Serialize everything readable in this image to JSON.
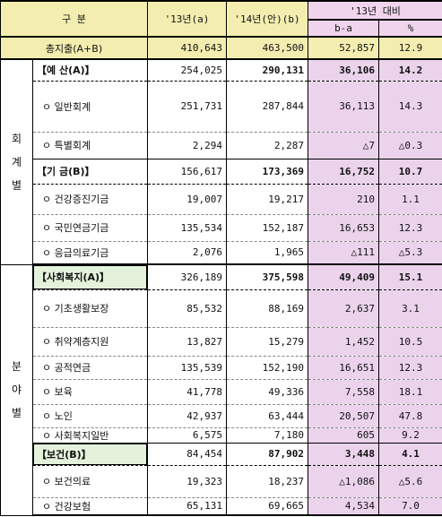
{
  "header": {
    "col_category": "구  분",
    "col_2013": "'13년(a)",
    "col_2014": "'14년(안)(b)",
    "col_vs2013": "'13년 대비",
    "col_diff": "b-a",
    "col_pct": "%"
  },
  "total": {
    "label": "총지출(A+B)",
    "y2013": "410,643",
    "y2014": "463,500",
    "diff": "52,857",
    "pct": "12.9"
  },
  "side_labels": {
    "by_account": "회\n계\n별",
    "by_sector": "분\n야\n별"
  },
  "rows": [
    {
      "label": "【예 산(A)】",
      "y2013": "254,025",
      "y2014": "290,131",
      "diff": "36,106",
      "pct": "14.2"
    },
    {
      "label": "ㅇ 일반회계",
      "y2013": "251,731",
      "y2014": "287,844",
      "diff": "36,113",
      "pct": "14.3"
    },
    {
      "label": "ㅇ 특별회계",
      "y2013": "2,294",
      "y2014": "2,287",
      "diff": "△7",
      "pct": "△0.3"
    },
    {
      "label": "【기 금(B)】",
      "y2013": "156,617",
      "y2014": "173,369",
      "diff": "16,752",
      "pct": "10.7"
    },
    {
      "label": "ㅇ 건강증진기금",
      "y2013": "19,007",
      "y2014": "19,217",
      "diff": "210",
      "pct": "1.1"
    },
    {
      "label": "ㅇ 국민연금기금",
      "y2013": "135,534",
      "y2014": "152,187",
      "diff": "16,653",
      "pct": "12.3"
    },
    {
      "label": "ㅇ 응급의료기금",
      "y2013": "2,076",
      "y2014": "1,965",
      "diff": "△111",
      "pct": "△5.3"
    },
    {
      "label": "【사회복지(A)】",
      "y2013": "326,189",
      "y2014": "375,598",
      "diff": "49,409",
      "pct": "15.1"
    },
    {
      "label": "ㅇ 기초생활보장",
      "y2013": "85,532",
      "y2014": "88,169",
      "diff": "2,637",
      "pct": "3.1"
    },
    {
      "label": "ㅇ 취약계층지원",
      "y2013": "13,827",
      "y2014": "15,279",
      "diff": "1,452",
      "pct": "10.5"
    },
    {
      "label": "ㅇ 공적연금",
      "y2013": "135,539",
      "y2014": "152,190",
      "diff": "16,651",
      "pct": "12.3"
    },
    {
      "label": "ㅇ 보육",
      "y2013": "41,778",
      "y2014": "49,336",
      "diff": "7,558",
      "pct": "18.1"
    },
    {
      "label": "ㅇ 노인",
      "y2013": "42,937",
      "y2014": "63,444",
      "diff": "20,507",
      "pct": "47.8"
    },
    {
      "label": "ㅇ 사회복지일반",
      "y2013": "6,575",
      "y2014": "7,180",
      "diff": "605",
      "pct": "9.2"
    },
    {
      "label": "【보건(B)】",
      "y2013": "84,454",
      "y2014": "87,902",
      "diff": "3,448",
      "pct": "4.1"
    },
    {
      "label": "ㅇ 보건의료",
      "y2013": "19,323",
      "y2014": "18,237",
      "diff": "△1,086",
      "pct": "△5.6"
    },
    {
      "label": "ㅇ 건강보험",
      "y2013": "65,131",
      "y2014": "69,665",
      "diff": "4,534",
      "pct": "7.0"
    }
  ],
  "colors": {
    "header_bg": "#f3eeaf",
    "diff_bg": "#ebd3ec",
    "highlight_green": "#e4f2dc"
  }
}
